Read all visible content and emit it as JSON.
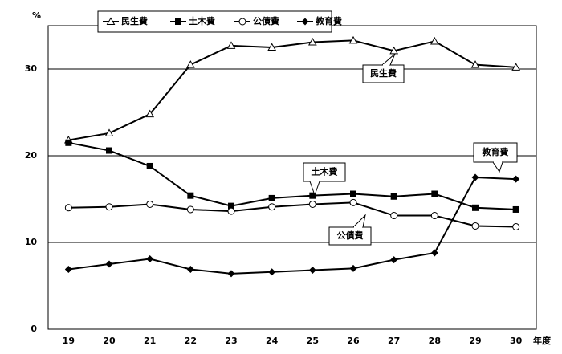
{
  "chart_data": {
    "type": "line",
    "y_unit": "%",
    "x_label": "年度",
    "categories": [
      "19",
      "20",
      "21",
      "22",
      "23",
      "24",
      "25",
      "26",
      "27",
      "28",
      "29",
      "30"
    ],
    "series": [
      {
        "name": "民生費",
        "color": "#000000",
        "marker": "triangle",
        "values": [
          21.8,
          22.6,
          24.8,
          30.5,
          32.7,
          32.5,
          33.1,
          33.3,
          32.1,
          33.2,
          30.5,
          30.2
        ]
      },
      {
        "name": "土木費",
        "color": "#000000",
        "marker": "square",
        "values": [
          21.5,
          20.6,
          18.8,
          15.4,
          14.2,
          15.1,
          15.4,
          15.6,
          15.3,
          15.6,
          14.0,
          13.8
        ]
      },
      {
        "name": "公債費",
        "color": "#000000",
        "marker": "circle",
        "values": [
          14.0,
          14.1,
          14.4,
          13.8,
          13.6,
          14.1,
          14.4,
          14.6,
          13.1,
          13.1,
          11.9,
          11.8
        ]
      },
      {
        "name": "教育費",
        "color": "#000000",
        "marker": "diamond",
        "values": [
          6.9,
          7.5,
          8.1,
          6.9,
          6.4,
          6.6,
          6.8,
          7.0,
          8.0,
          8.8,
          17.5,
          17.3
        ]
      }
    ],
    "annotations": [
      "民生費",
      "土木費",
      "公債費",
      "教育費"
    ],
    "ylim": [
      0,
      35
    ],
    "yticks": [
      0,
      10,
      20,
      30
    ],
    "grid": true
  }
}
